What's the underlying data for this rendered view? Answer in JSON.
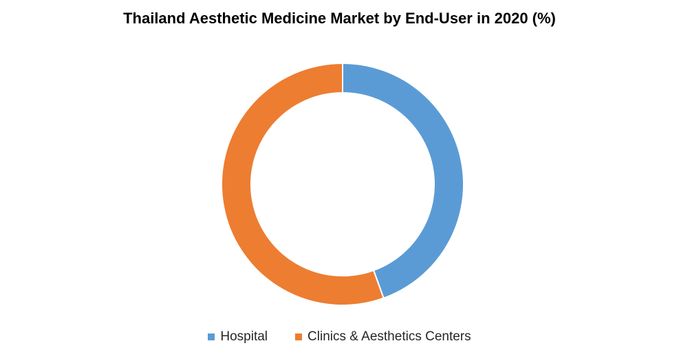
{
  "chart_data": {
    "type": "pie",
    "style": "donut",
    "title": "Thailand Aesthetic Medicine Market by End-User in 2020 (%)",
    "categories": [
      "Hospital",
      "Clinics & Aesthetics Centers"
    ],
    "values": [
      44.5,
      55.5
    ],
    "colors": [
      "#5B9BD5",
      "#ED7D31"
    ],
    "legend_position": "bottom",
    "data_labels": false
  }
}
